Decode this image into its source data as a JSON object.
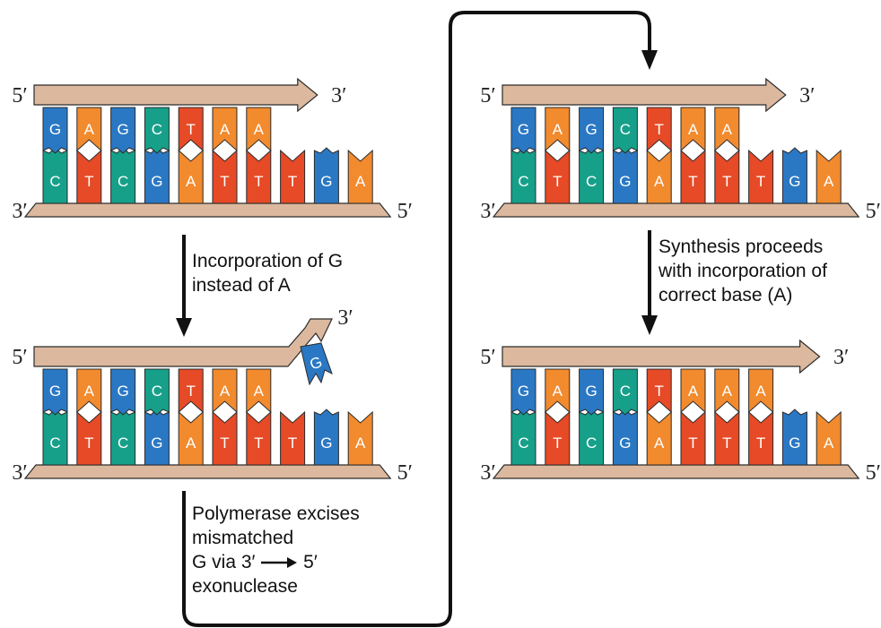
{
  "colors": {
    "G": "#2a78c4",
    "A": "#f28a2e",
    "C": "#16a089",
    "T": "#e64a26",
    "strand": "#dcb99e",
    "outline": "#2b2b2b"
  },
  "panels": [
    {
      "id": "initial",
      "primer": [
        "G",
        "A",
        "G",
        "C",
        "T",
        "A",
        "A"
      ],
      "template": [
        "C",
        "T",
        "C",
        "G",
        "A",
        "T",
        "T",
        "T",
        "G",
        "A"
      ],
      "labels": {
        "primer_5": "5′",
        "primer_3": "3′",
        "template_3": "3′",
        "template_5": "5′"
      }
    },
    {
      "id": "mismatch",
      "primer": [
        "G",
        "A",
        "G",
        "C",
        "T",
        "A",
        "A"
      ],
      "mismatched": "G",
      "template": [
        "C",
        "T",
        "C",
        "G",
        "A",
        "T",
        "T",
        "T",
        "G",
        "A"
      ],
      "labels": {
        "primer_5": "5′",
        "primer_3": "3′",
        "template_3": "3′",
        "template_5": "5′"
      }
    },
    {
      "id": "excised",
      "primer": [
        "G",
        "A",
        "G",
        "C",
        "T",
        "A",
        "A"
      ],
      "template": [
        "C",
        "T",
        "C",
        "G",
        "A",
        "T",
        "T",
        "T",
        "G",
        "A"
      ],
      "labels": {
        "primer_5": "5′",
        "primer_3": "3′",
        "template_3": "3′",
        "template_5": "5′"
      }
    },
    {
      "id": "corrected",
      "primer": [
        "G",
        "A",
        "G",
        "C",
        "T",
        "A",
        "A",
        "A"
      ],
      "template": [
        "C",
        "T",
        "C",
        "G",
        "A",
        "T",
        "T",
        "T",
        "G",
        "A"
      ],
      "labels": {
        "primer_5": "5′",
        "primer_3": "3′",
        "template_3": "3′",
        "template_5": "5′"
      }
    }
  ],
  "captions": {
    "incorporation": [
      "Incorporation of G",
      "instead of A"
    ],
    "excision": [
      "Polymerase excises",
      "mismatched"
    ],
    "excision_last_prefix": "G via 3′",
    "excision_last_suffix": "5′",
    "excision_tail": "exonuclease",
    "synthesis": [
      "Synthesis proceeds",
      "with incorporation of",
      "correct base (A)"
    ]
  }
}
